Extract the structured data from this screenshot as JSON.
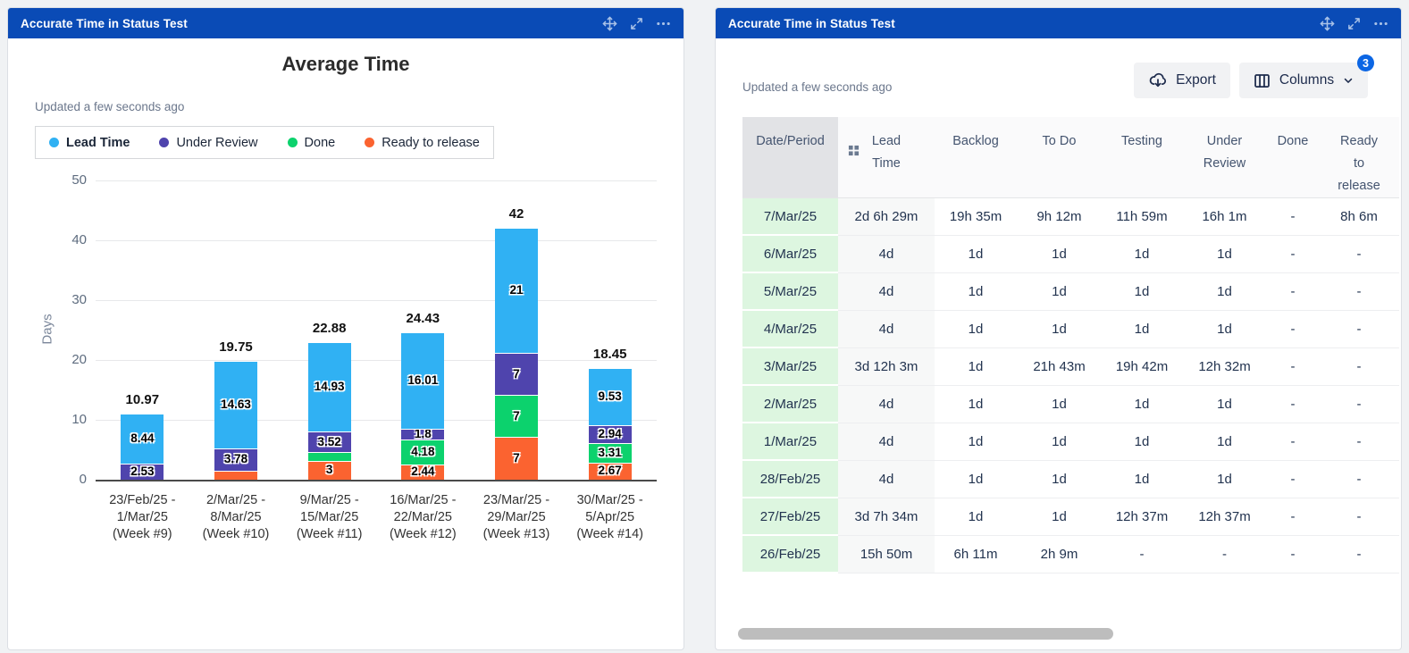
{
  "colors": {
    "header_blue": "#0A4BB6",
    "badge_blue": "#0C66E4",
    "date_cell_green": "#DDF6E0",
    "scrollbar_gray": "#BDBDBD",
    "page_background": "#F0F2F4"
  },
  "left_panel": {
    "title": "Accurate Time in Status Test",
    "updated": "Updated a few seconds ago"
  },
  "right_panel": {
    "title": "Accurate Time in Status Test",
    "updated": "Updated a few seconds ago",
    "export_label": "Export",
    "columns_label": "Columns",
    "columns_badge": "3"
  },
  "chart_data": {
    "type": "bar",
    "stacked": true,
    "title": "Average Time",
    "ylabel": "Days",
    "ylim": [
      0,
      50
    ],
    "yticks": [
      0,
      10,
      20,
      30,
      40,
      50
    ],
    "grid": true,
    "legend_position": "top",
    "categories": [
      [
        "23/Feb/25 -",
        "1/Mar/25",
        "(Week #9)"
      ],
      [
        "2/Mar/25 -",
        "8/Mar/25",
        "(Week #10)"
      ],
      [
        "9/Mar/25 -",
        "15/Mar/25",
        "(Week #11)"
      ],
      [
        "16/Mar/25 -",
        "22/Mar/25",
        "(Week #12)"
      ],
      [
        "23/Mar/25 -",
        "29/Mar/25",
        "(Week #13)"
      ],
      [
        "30/Mar/25 -",
        "5/Apr/25",
        "(Week #14)"
      ]
    ],
    "legend": [
      {
        "label": "Lead Time",
        "color": "#30B1F3",
        "bold": true
      },
      {
        "label": "Under Review",
        "color": "#4F44AD",
        "bold": false
      },
      {
        "label": "Done",
        "color": "#0CD26D",
        "bold": false
      },
      {
        "label": "Ready to release",
        "color": "#FB6330",
        "bold": false
      }
    ],
    "series": [
      {
        "name": "Ready to release",
        "color": "#FB6330",
        "values": [
          0,
          1.34,
          3,
          2.44,
          7,
          2.67
        ],
        "labels": [
          null,
          null,
          "3",
          "2.44",
          "7",
          "2.67"
        ]
      },
      {
        "name": "Done",
        "color": "#0CD26D",
        "values": [
          0,
          0,
          1.43,
          4.18,
          7,
          3.31
        ],
        "labels": [
          null,
          null,
          null,
          "4.18",
          "7",
          "3.31"
        ]
      },
      {
        "name": "Under Review",
        "color": "#4F44AD",
        "values": [
          2.53,
          3.78,
          3.52,
          1.8,
          7,
          2.94
        ],
        "labels": [
          "2.53",
          "3.78",
          "3.52",
          "1.8",
          "7",
          "2.94"
        ]
      },
      {
        "name": "Lead Time",
        "color": "#30B1F3",
        "values": [
          8.44,
          14.63,
          14.93,
          16.01,
          21,
          9.53
        ],
        "labels": [
          "8.44",
          "14.63",
          "14.93",
          "16.01",
          "21",
          "9.53"
        ]
      }
    ],
    "totals": [
      "10.97",
      "19.75",
      "22.88",
      "24.43",
      "42",
      "18.45"
    ]
  },
  "table": {
    "columns": [
      "Date/Period",
      "Lead Time",
      "Backlog",
      "To Do",
      "Testing",
      "Under Review",
      "Done",
      "Ready to release"
    ],
    "rows": [
      [
        "7/Mar/25",
        "2d 6h 29m",
        "19h 35m",
        "9h 12m",
        "11h 59m",
        "16h 1m",
        "-",
        "8h 6m"
      ],
      [
        "6/Mar/25",
        "4d",
        "1d",
        "1d",
        "1d",
        "1d",
        "-",
        "-"
      ],
      [
        "5/Mar/25",
        "4d",
        "1d",
        "1d",
        "1d",
        "1d",
        "-",
        "-"
      ],
      [
        "4/Mar/25",
        "4d",
        "1d",
        "1d",
        "1d",
        "1d",
        "-",
        "-"
      ],
      [
        "3/Mar/25",
        "3d 12h 3m",
        "1d",
        "21h 43m",
        "19h 42m",
        "12h 32m",
        "-",
        "-"
      ],
      [
        "2/Mar/25",
        "4d",
        "1d",
        "1d",
        "1d",
        "1d",
        "-",
        "-"
      ],
      [
        "1/Mar/25",
        "4d",
        "1d",
        "1d",
        "1d",
        "1d",
        "-",
        "-"
      ],
      [
        "28/Feb/25",
        "4d",
        "1d",
        "1d",
        "1d",
        "1d",
        "-",
        "-"
      ],
      [
        "27/Feb/25",
        "3d 7h 34m",
        "1d",
        "1d",
        "12h 37m",
        "12h 37m",
        "-",
        "-"
      ],
      [
        "26/Feb/25",
        "15h 50m",
        "6h 11m",
        "2h 9m",
        "-",
        "-",
        "-",
        "-"
      ]
    ]
  }
}
